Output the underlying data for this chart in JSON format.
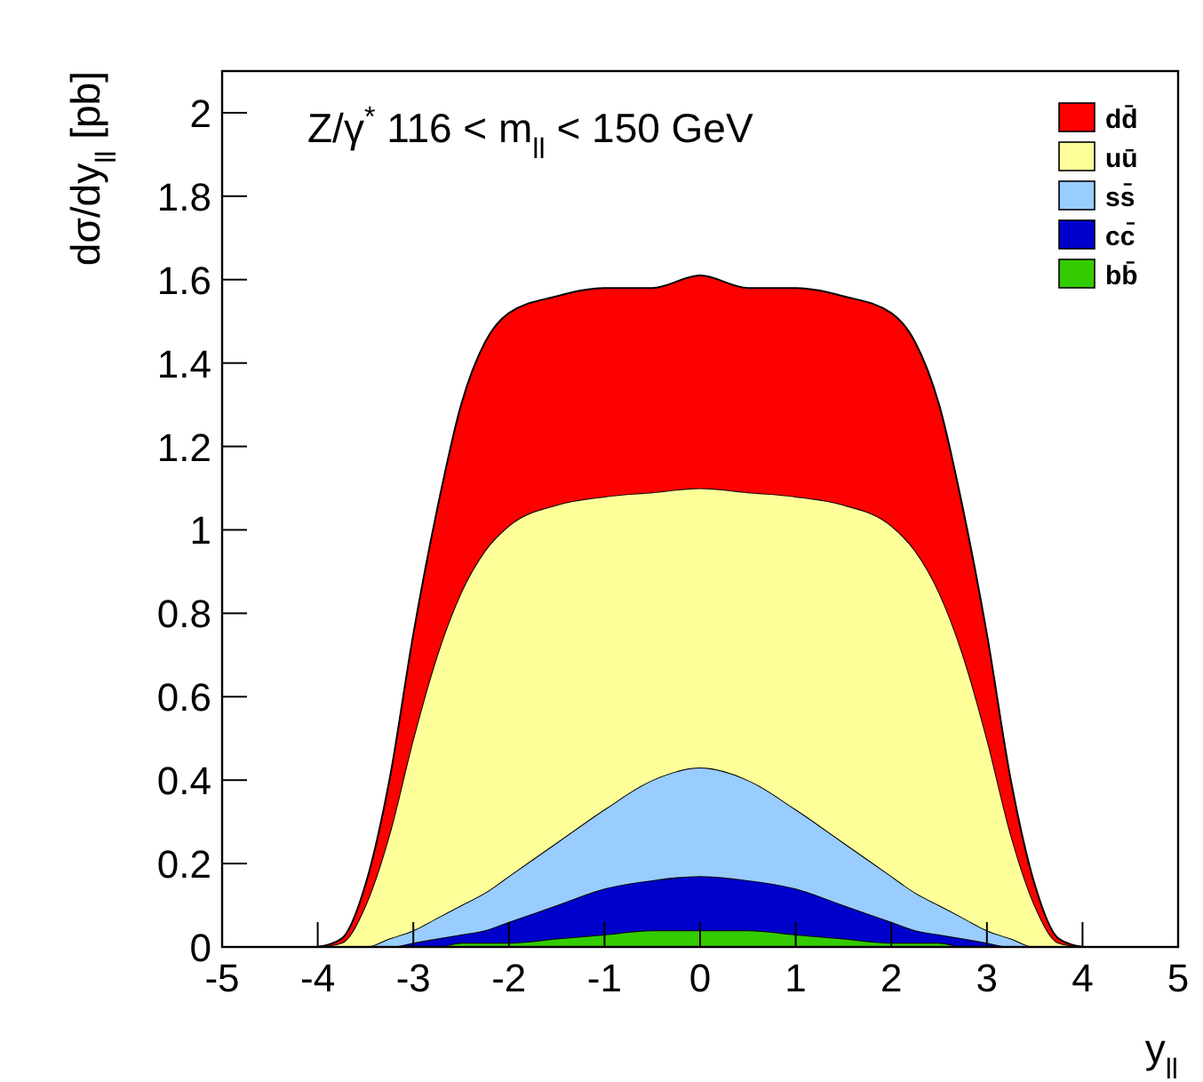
{
  "chart_data": {
    "type": "area",
    "stacked": true,
    "title": "Z/γ$^{*}$   116 < m$_{ll}$ < 150 GeV",
    "xlabel": "y$_{ll}$",
    "ylabel": "dσ/dy$_{ll}$ [pb]",
    "x": [
      -4,
      -3.75,
      -3.5,
      -3.25,
      -3,
      -2.75,
      -2.5,
      -2.25,
      -2,
      -1.5,
      -1,
      -0.5,
      0,
      0.5,
      1,
      1.5,
      2,
      2.25,
      2.5,
      2.75,
      3,
      3.25,
      3.5,
      3.75,
      4
    ],
    "series": [
      {
        "name": "bb̄",
        "color": "#33cc00",
        "values": [
          0,
          0,
          0,
          0,
          0,
          0,
          0.01,
          0.01,
          0.01,
          0.02,
          0.03,
          0.04,
          0.04,
          0.04,
          0.03,
          0.02,
          0.01,
          0.01,
          0.01,
          0,
          0,
          0,
          0,
          0,
          0
        ]
      },
      {
        "name": "cc̄",
        "color": "#0000cc",
        "values": [
          0,
          0,
          0,
          0,
          0.01,
          0.02,
          0.02,
          0.03,
          0.05,
          0.08,
          0.11,
          0.12,
          0.13,
          0.12,
          0.11,
          0.08,
          0.05,
          0.03,
          0.02,
          0.02,
          0.01,
          0,
          0,
          0,
          0
        ]
      },
      {
        "name": "ss̄",
        "color": "#99ccff",
        "values": [
          0,
          0,
          0,
          0.02,
          0.03,
          0.05,
          0.07,
          0.09,
          0.11,
          0.15,
          0.19,
          0.24,
          0.26,
          0.24,
          0.19,
          0.15,
          0.11,
          0.09,
          0.07,
          0.05,
          0.03,
          0.02,
          0,
          0,
          0
        ]
      },
      {
        "name": "uū",
        "color": "#ffff99",
        "values": [
          0,
          0.01,
          0.1,
          0.25,
          0.46,
          0.63,
          0.75,
          0.82,
          0.84,
          0.81,
          0.75,
          0.69,
          0.67,
          0.69,
          0.75,
          0.81,
          0.84,
          0.82,
          0.75,
          0.63,
          0.46,
          0.25,
          0.1,
          0.01,
          0
        ]
      },
      {
        "name": "dd̄",
        "color": "#ff0000",
        "values": [
          0,
          0.01,
          0.05,
          0.13,
          0.25,
          0.35,
          0.45,
          0.5,
          0.51,
          0.5,
          0.5,
          0.49,
          0.51,
          0.49,
          0.5,
          0.5,
          0.51,
          0.5,
          0.45,
          0.35,
          0.25,
          0.13,
          0.05,
          0.01,
          0
        ]
      }
    ],
    "xlim": [
      -5,
      5
    ],
    "xticks": [
      -5,
      -4,
      -3,
      -2,
      -1,
      0,
      1,
      2,
      3,
      4,
      5
    ],
    "ylim": [
      0,
      2.1
    ],
    "yticks": [
      0,
      0.2,
      0.4,
      0.6,
      0.8,
      1,
      1.2,
      1.4,
      1.6,
      1.8,
      2
    ],
    "legend": "top right",
    "grid": false
  }
}
